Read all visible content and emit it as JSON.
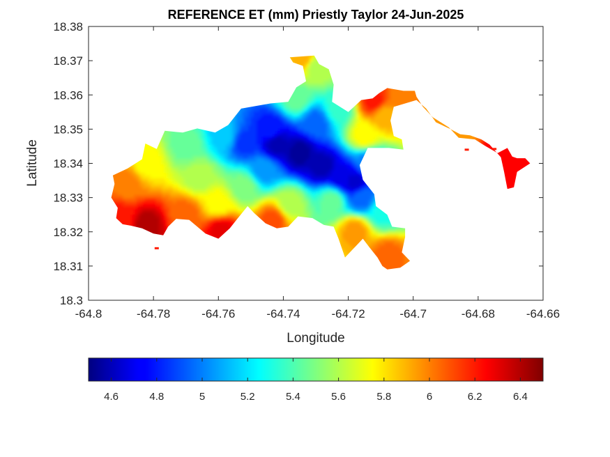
{
  "chart_data": {
    "type": "heatmap",
    "title": "REFERENCE ET (mm) Priestly Taylor 24-Jun-2025",
    "xlabel": "Longitude",
    "ylabel": "Latitude",
    "xlim": [
      -64.8,
      -64.66
    ],
    "ylim": [
      18.3,
      18.38
    ],
    "xticks": [
      -64.8,
      -64.78,
      -64.76,
      -64.74,
      -64.72,
      -64.7,
      -64.68,
      -64.66
    ],
    "xtick_labels": [
      "-64.8",
      "-64.78",
      "-64.76",
      "-64.74",
      "-64.72",
      "-64.7",
      "-64.68",
      "-64.66"
    ],
    "yticks": [
      18.3,
      18.31,
      18.32,
      18.33,
      18.34,
      18.35,
      18.36,
      18.37,
      18.38
    ],
    "ytick_labels": [
      "18.3",
      "18.31",
      "18.32",
      "18.33",
      "18.34",
      "18.35",
      "18.36",
      "18.37",
      "18.38"
    ],
    "colormap": "jet",
    "clim": [
      4.5,
      6.5
    ],
    "colorbar_placement": "bottom",
    "colorbar_ticks": [
      4.6,
      4.8,
      5,
      5.2,
      5.4,
      5.6,
      5.8,
      6,
      6.2,
      6.4
    ],
    "colorbar_tick_labels": [
      "4.6",
      "4.8",
      "5",
      "5.2",
      "5.4",
      "5.6",
      "5.8",
      "6",
      "6.2",
      "6.4"
    ],
    "grid": false,
    "region_outline": [
      [
        -64.7925,
        18.3365
      ],
      [
        -64.788,
        18.3385
      ],
      [
        -64.7835,
        18.3412
      ],
      [
        -64.7825,
        18.3458
      ],
      [
        -64.779,
        18.3442
      ],
      [
        -64.7765,
        18.3495
      ],
      [
        -64.771,
        18.349
      ],
      [
        -64.7665,
        18.3502
      ],
      [
        -64.761,
        18.349
      ],
      [
        -64.757,
        18.3512
      ],
      [
        -64.753,
        18.356
      ],
      [
        -64.744,
        18.3575
      ],
      [
        -64.7385,
        18.358
      ],
      [
        -64.736,
        18.3622
      ],
      [
        -64.733,
        18.364
      ],
      [
        -64.734,
        18.3685
      ],
      [
        -64.737,
        18.3695
      ],
      [
        -64.738,
        18.371
      ],
      [
        -64.7305,
        18.3715
      ],
      [
        -64.729,
        18.369
      ],
      [
        -64.726,
        18.3675
      ],
      [
        -64.7245,
        18.363
      ],
      [
        -64.725,
        18.358
      ],
      [
        -64.72,
        18.355
      ],
      [
        -64.716,
        18.3585
      ],
      [
        -64.7125,
        18.359
      ],
      [
        -64.7105,
        18.3605
      ],
      [
        -64.708,
        18.362
      ],
      [
        -64.703,
        18.3612
      ],
      [
        -64.6995,
        18.3612
      ],
      [
        -64.699,
        18.3595
      ],
      [
        -64.697,
        18.3565
      ],
      [
        -64.694,
        18.3535
      ],
      [
        -64.689,
        18.3505
      ],
      [
        -64.686,
        18.3475
      ],
      [
        -64.681,
        18.347
      ],
      [
        -64.678,
        18.3452
      ],
      [
        -64.674,
        18.343
      ],
      [
        -64.671,
        18.3445
      ],
      [
        -64.6695,
        18.342
      ],
      [
        -64.668,
        18.3415
      ],
      [
        -64.6655,
        18.3415
      ],
      [
        -64.664,
        18.34
      ],
      [
        -64.668,
        18.3375
      ],
      [
        -64.669,
        18.333
      ],
      [
        -64.671,
        18.3325
      ],
      [
        -64.672,
        18.3375
      ],
      [
        -64.673,
        18.3418
      ],
      [
        -64.6765,
        18.3455
      ],
      [
        -64.679,
        18.347
      ],
      [
        -64.6825,
        18.3482
      ],
      [
        -64.6855,
        18.3485
      ],
      [
        -64.6885,
        18.35
      ],
      [
        -64.693,
        18.352
      ],
      [
        -64.696,
        18.356
      ],
      [
        -64.699,
        18.3585
      ],
      [
        -64.706,
        18.3565
      ],
      [
        -64.707,
        18.3525
      ],
      [
        -64.706,
        18.348
      ],
      [
        -64.7035,
        18.347
      ],
      [
        -64.703,
        18.344
      ],
      [
        -64.7075,
        18.3445
      ],
      [
        -64.714,
        18.3445
      ],
      [
        -64.7165,
        18.3395
      ],
      [
        -64.7155,
        18.3352
      ],
      [
        -64.712,
        18.331
      ],
      [
        -64.7115,
        18.3275
      ],
      [
        -64.708,
        18.325
      ],
      [
        -64.7065,
        18.3215
      ],
      [
        -64.7025,
        18.321
      ],
      [
        -64.7025,
        18.3185
      ],
      [
        -64.7035,
        18.314
      ],
      [
        -64.701,
        18.3115
      ],
      [
        -64.704,
        18.3095
      ],
      [
        -64.708,
        18.309
      ],
      [
        -64.7095,
        18.31
      ],
      [
        -64.711,
        18.3125
      ],
      [
        -64.7135,
        18.3155
      ],
      [
        -64.7155,
        18.318
      ],
      [
        -64.7185,
        18.315
      ],
      [
        -64.721,
        18.3125
      ],
      [
        -64.723,
        18.318
      ],
      [
        -64.7245,
        18.3215
      ],
      [
        -64.7275,
        18.322
      ],
      [
        -64.731,
        18.324
      ],
      [
        -64.7355,
        18.3245
      ],
      [
        -64.7385,
        18.3215
      ],
      [
        -64.742,
        18.321
      ],
      [
        -64.7455,
        18.3225
      ],
      [
        -64.749,
        18.3255
      ],
      [
        -64.751,
        18.3275
      ],
      [
        -64.754,
        18.324
      ],
      [
        -64.7565,
        18.321
      ],
      [
        -64.76,
        18.318
      ],
      [
        -64.764,
        18.3195
      ],
      [
        -64.769,
        18.3235
      ],
      [
        -64.773,
        18.3238
      ],
      [
        -64.7755,
        18.3215
      ],
      [
        -64.777,
        18.319
      ],
      [
        -64.78,
        18.3195
      ],
      [
        -64.7835,
        18.321
      ],
      [
        -64.787,
        18.3218
      ],
      [
        -64.7895,
        18.3222
      ],
      [
        -64.7915,
        18.324
      ],
      [
        -64.791,
        18.327
      ],
      [
        -64.793,
        18.33
      ],
      [
        -64.792,
        18.334
      ]
    ],
    "islets": [
      [
        -64.779,
        18.3152
      ],
      [
        -64.675,
        18.3442
      ],
      [
        -64.6835,
        18.344
      ]
    ],
    "values": [
      {
        "lon": -64.735,
        "lat": 18.343,
        "et": 4.55
      },
      {
        "lon": -64.742,
        "lat": 18.3455,
        "et": 4.6
      },
      {
        "lon": -64.728,
        "lat": 18.339,
        "et": 4.6
      },
      {
        "lon": -64.718,
        "lat": 18.3345,
        "et": 4.65
      },
      {
        "lon": -64.722,
        "lat": 18.336,
        "et": 4.7
      },
      {
        "lon": -64.744,
        "lat": 18.35,
        "et": 4.8
      },
      {
        "lon": -64.752,
        "lat": 18.346,
        "et": 4.85
      },
      {
        "lon": -64.73,
        "lat": 18.352,
        "et": 4.95
      },
      {
        "lon": -64.746,
        "lat": 18.338,
        "et": 5.05
      },
      {
        "lon": -64.716,
        "lat": 18.33,
        "et": 4.95
      },
      {
        "lon": -64.758,
        "lat": 18.348,
        "et": 5.15
      },
      {
        "lon": -64.723,
        "lat": 18.356,
        "et": 5.35
      },
      {
        "lon": -64.736,
        "lat": 18.359,
        "et": 5.45
      },
      {
        "lon": -64.714,
        "lat": 18.34,
        "et": 5.0
      },
      {
        "lon": -64.709,
        "lat": 18.326,
        "et": 5.3
      },
      {
        "lon": -64.752,
        "lat": 18.333,
        "et": 5.5
      },
      {
        "lon": -64.77,
        "lat": 18.345,
        "et": 5.45
      },
      {
        "lon": -64.766,
        "lat": 18.336,
        "et": 5.6
      },
      {
        "lon": -64.738,
        "lat": 18.328,
        "et": 5.6
      },
      {
        "lon": -64.725,
        "lat": 18.329,
        "et": 5.45
      },
      {
        "lon": -64.73,
        "lat": 18.368,
        "et": 5.6
      },
      {
        "lon": -64.782,
        "lat": 18.34,
        "et": 5.75
      },
      {
        "lon": -64.76,
        "lat": 18.328,
        "et": 5.75
      },
      {
        "lon": -64.715,
        "lat": 18.348,
        "et": 5.75
      },
      {
        "lon": -64.709,
        "lat": 18.354,
        "et": 5.9
      },
      {
        "lon": -64.734,
        "lat": 18.3705,
        "et": 5.9
      },
      {
        "lon": -64.703,
        "lat": 18.359,
        "et": 6.0
      },
      {
        "lon": -64.718,
        "lat": 18.32,
        "et": 5.95
      },
      {
        "lon": -64.708,
        "lat": 18.313,
        "et": 6.05
      },
      {
        "lon": -64.788,
        "lat": 18.334,
        "et": 6.0
      },
      {
        "lon": -64.77,
        "lat": 18.325,
        "et": 6.05
      },
      {
        "lon": -64.743,
        "lat": 18.3235,
        "et": 6.1
      },
      {
        "lon": -64.69,
        "lat": 18.35,
        "et": 5.95
      },
      {
        "lon": -64.685,
        "lat": 18.348,
        "et": 5.95
      },
      {
        "lon": -64.712,
        "lat": 18.358,
        "et": 6.2
      },
      {
        "lon": -64.674,
        "lat": 18.344,
        "et": 6.25
      },
      {
        "lon": -64.669,
        "lat": 18.339,
        "et": 6.25
      },
      {
        "lon": -64.759,
        "lat": 18.3205,
        "et": 6.3
      },
      {
        "lon": -64.782,
        "lat": 18.322,
        "et": 6.4
      },
      {
        "lon": -64.79,
        "lat": 18.324,
        "et": 6.2
      }
    ]
  }
}
